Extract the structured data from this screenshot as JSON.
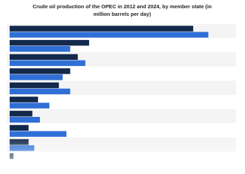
{
  "chart_data": {
    "type": "bar",
    "orientation": "horizontal",
    "title": "Crude oil production of the OPEC in 2012 and 2024, by member state (in million barrels per day)",
    "categories": [
      null,
      null,
      null,
      null,
      null,
      null,
      null,
      null,
      null,
      null
    ],
    "series": [
      {
        "color": "#13294b",
        "values": [
          9.7,
          4.2,
          3.6,
          3.2,
          2.6,
          1.5,
          1.2,
          1.0,
          1.0,
          0.2
        ]
      },
      {
        "color": "#2f6fd6",
        "values": [
          10.5,
          3.2,
          4.0,
          2.8,
          3.2,
          2.1,
          1.6,
          3.0,
          1.3,
          null
        ]
      }
    ],
    "xlim": [
      0,
      12
    ],
    "grid": true
  }
}
